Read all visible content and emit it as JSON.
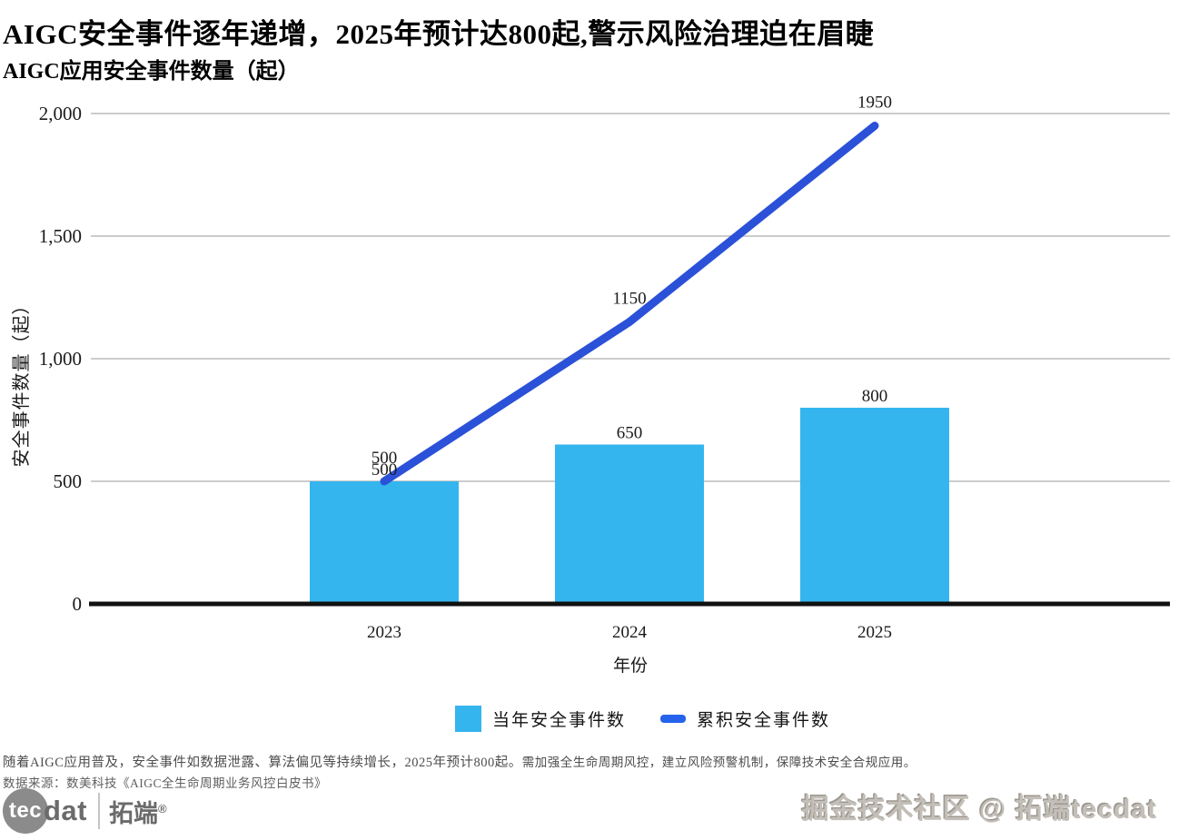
{
  "header": {
    "title": "AIGC安全事件逐年递增，2025年预计达800起,警示风险治理迫在眉睫",
    "subtitle": "AIGC应用安全事件数量（起）"
  },
  "chart_data": {
    "type": "combo",
    "title": "AIGC应用安全事件数量（起）",
    "categories": [
      "2023",
      "2024",
      "2025"
    ],
    "series": [
      {
        "name": "当年安全事件数",
        "type": "bar",
        "color": "#35b5ee",
        "values": [
          500,
          650,
          800
        ]
      },
      {
        "name": "累积安全事件数",
        "type": "line",
        "color": "#2b51d8",
        "values": [
          500,
          1150,
          1950
        ]
      }
    ],
    "xlabel": "年份",
    "ylabel": "安全事件数量（起）",
    "ylim": [
      0,
      2000
    ],
    "yticks": [
      {
        "v": 0,
        "label": "0"
      },
      {
        "v": 500,
        "label": "500"
      },
      {
        "v": 1000,
        "label": "1,000"
      },
      {
        "v": 1500,
        "label": "1,500"
      },
      {
        "v": 2000,
        "label": "2,000"
      }
    ],
    "grid": "horizontal-only",
    "grid_color": "#cccccc",
    "axis_color": "#111111",
    "label_color": "#1a1a1a",
    "legend_position": "bottom-center",
    "legend_swatch_line_color": "#2563eb"
  },
  "footer": {
    "note_primary": "随着AIGC应用普及，安全事件如数据泄露、算法偏见等持续增长，2025年预计800起。",
    "note_secondary": "需加强全生命周期风控，建立风险预警机制，保障技术安全合规应用。",
    "source": "数据来源：数美科技《AIGC全生命周期业务风控白皮书》"
  },
  "branding": {
    "logo_circle_text": "tec",
    "logo_text": "dat",
    "logo_cn": "拓端",
    "logo_reg": "®",
    "watermark": "掘金技术社区 @ 拓端tecdat"
  }
}
